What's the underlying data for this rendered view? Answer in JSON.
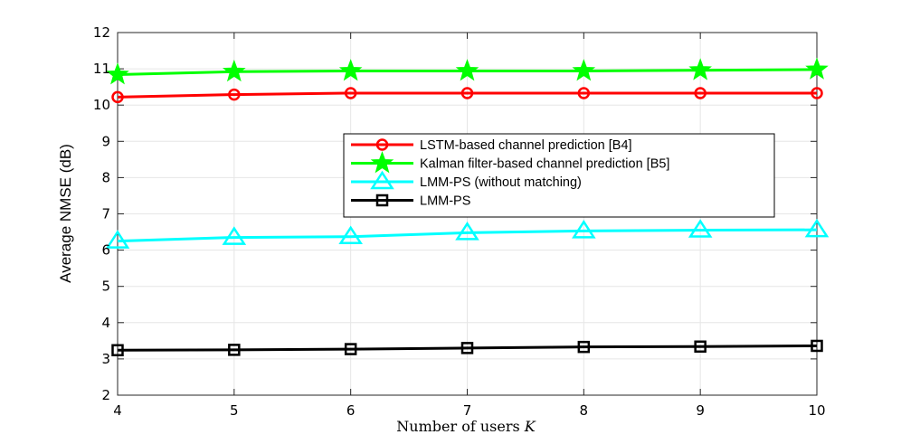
{
  "chart_data": {
    "type": "line",
    "xlabel": "Number of users",
    "xlabel_var": "K",
    "ylabel": "Average NMSE (dB)",
    "xlim": [
      4,
      10
    ],
    "ylim": [
      2,
      12
    ],
    "grid": true,
    "legend_position": "right",
    "x": [
      4,
      5,
      6,
      7,
      8,
      9,
      10
    ],
    "x_ticks": [
      4,
      5,
      6,
      7,
      8,
      9,
      10
    ],
    "y_ticks": [
      2,
      3,
      4,
      5,
      6,
      7,
      8,
      9,
      10,
      11,
      12
    ],
    "series": [
      {
        "name": "LSTM-based channel prediction [B4]",
        "color": "#ff0000",
        "marker": "circle",
        "values": [
          10.22,
          10.29,
          10.33,
          10.33,
          10.33,
          10.33,
          10.33
        ]
      },
      {
        "name": "Kalman filter-based channel prediction [B5]",
        "color": "#00ff00",
        "marker": "star",
        "values": [
          10.84,
          10.92,
          10.94,
          10.94,
          10.94,
          10.96,
          10.98
        ]
      },
      {
        "name": "LMM-PS (without matching)",
        "color": "#00ffff",
        "marker": "triangle",
        "values": [
          6.25,
          6.35,
          6.37,
          6.48,
          6.53,
          6.55,
          6.56
        ]
      },
      {
        "name": "LMM-PS",
        "color": "#000000",
        "marker": "square",
        "values": [
          3.24,
          3.25,
          3.27,
          3.3,
          3.33,
          3.34,
          3.36
        ]
      }
    ]
  }
}
